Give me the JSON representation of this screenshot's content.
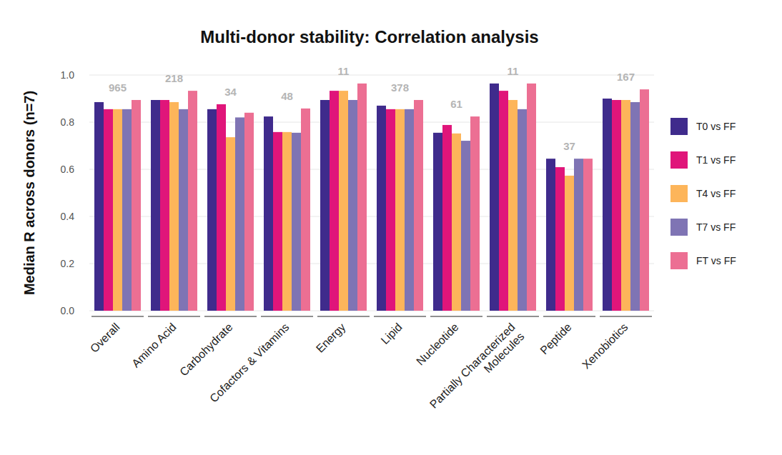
{
  "chart_data": {
    "type": "bar",
    "title": "Multi-donor stability: Correlation analysis",
    "y_label": "Median R across donors (n=7)",
    "categories": [
      "Overall",
      "Amino Acid",
      "Carbohydrate",
      "Cofactors & Vitamins",
      "Energy",
      "Lipid",
      "Nucleotide",
      "Partially Characterized Molecules",
      "Peptide",
      "Xenobiotics"
    ],
    "group_counts": [
      965,
      218,
      34,
      48,
      11,
      378,
      61,
      11,
      37,
      167
    ],
    "series": [
      {
        "name": "T0 vs FF",
        "color": "#3f2b8c",
        "values": [
          0.885,
          0.894,
          0.855,
          0.824,
          0.894,
          0.87,
          0.755,
          0.964,
          0.645,
          0.9
        ]
      },
      {
        "name": "T1 vs FF",
        "color": "#e0157a",
        "values": [
          0.855,
          0.894,
          0.876,
          0.758,
          0.933,
          0.855,
          0.788,
          0.933,
          0.609,
          0.894
        ]
      },
      {
        "name": "T4 vs FF",
        "color": "#fdb55a",
        "values": [
          0.855,
          0.885,
          0.736,
          0.758,
          0.933,
          0.855,
          0.752,
          0.894,
          0.573,
          0.894
        ]
      },
      {
        "name": "T7 vs FF",
        "color": "#7f74b4",
        "values": [
          0.855,
          0.855,
          0.82,
          0.755,
          0.894,
          0.855,
          0.721,
          0.855,
          0.645,
          0.885
        ]
      },
      {
        "name": "FT vs FF",
        "color": "#ec6f93",
        "values": [
          0.894,
          0.933,
          0.84,
          0.858,
          0.964,
          0.894,
          0.824,
          0.964,
          0.645,
          0.939
        ]
      }
    ],
    "ylim": [
      0,
      1
    ],
    "yticks": [
      {
        "value": 0,
        "label": "0.0"
      },
      0.2,
      0.4,
      0.6,
      0.8,
      {
        "value": 1,
        "label": "1.0"
      }
    ],
    "grid": true,
    "legend": "right"
  }
}
